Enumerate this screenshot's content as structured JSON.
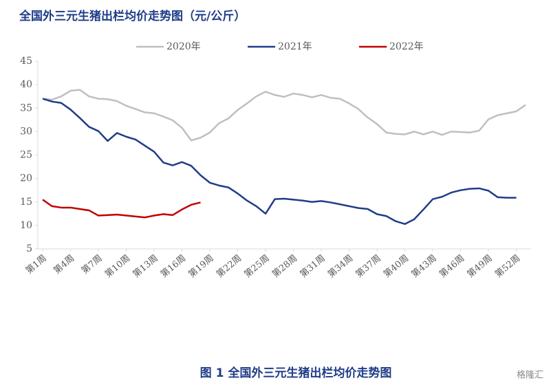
{
  "chart_data": {
    "type": "line",
    "title": "全国外三元生猪出栏均价走势图（元/公斤）",
    "caption": "图 1 全国外三元生猪出栏均价走势图",
    "brand": "格隆汇",
    "categories": [
      "第1周",
      null,
      null,
      "第4周",
      null,
      null,
      "第7周",
      null,
      null,
      "第10周",
      null,
      null,
      "第13周",
      null,
      null,
      "第16周",
      null,
      null,
      "第19周",
      null,
      null,
      "第22周",
      null,
      null,
      "第25周",
      null,
      null,
      "第28周",
      null,
      null,
      "第31周",
      null,
      null,
      "第34周",
      null,
      null,
      "第37周",
      null,
      null,
      "第40周",
      null,
      null,
      "第43周",
      null,
      null,
      "第46周",
      null,
      null,
      "第49周",
      null,
      null,
      "第52周",
      null
    ],
    "ylim": [
      5,
      45
    ],
    "yticks": [
      5,
      10,
      15,
      20,
      25,
      30,
      35,
      40,
      45
    ],
    "legend": "top",
    "series": [
      {
        "name": "2020年",
        "color": "#bfbfbf",
        "values": [
          37,
          36.8,
          37.5,
          38.7,
          38.9,
          37.5,
          37,
          36.9,
          36.5,
          35.5,
          34.8,
          34.1,
          33.9,
          33.2,
          32.4,
          30.8,
          28.1,
          28.7,
          29.8,
          31.8,
          32.8,
          34.6,
          36,
          37.5,
          38.5,
          37.8,
          37.4,
          38.1,
          37.8,
          37.3,
          37.8,
          37.2,
          37,
          36,
          34.8,
          33,
          31.6,
          29.8,
          29.5,
          29.4,
          30,
          29.4,
          30,
          29.3,
          30,
          29.9,
          29.8,
          30.2,
          32.6,
          33.5,
          33.9,
          34.3,
          35.7
        ]
      },
      {
        "name": "2021年",
        "color": "#1f3c88",
        "values": [
          37,
          36.4,
          36.1,
          34.7,
          32.9,
          31,
          30.1,
          28,
          29.7,
          28.9,
          28.3,
          27,
          25.7,
          23.4,
          22.8,
          23.5,
          22.7,
          20.7,
          19.1,
          18.5,
          18.1,
          16.8,
          15.3,
          14.1,
          12.5,
          15.6,
          15.7,
          15.5,
          15.3,
          15,
          15.2,
          14.9,
          14.5,
          14.1,
          13.7,
          13.5,
          12.4,
          12,
          10.9,
          10.3,
          11.3,
          13.4,
          15.6,
          16.1,
          17,
          17.5,
          17.8,
          17.9,
          17.4,
          16,
          15.9,
          15.9,
          null
        ]
      },
      {
        "name": "2022年",
        "color": "#c00000",
        "values": [
          15.5,
          14.1,
          13.8,
          13.8,
          13.5,
          13.2,
          12.1,
          12.2,
          12.3,
          12.1,
          11.9,
          11.7,
          12.1,
          12.4,
          12.2,
          13.4,
          14.4,
          14.9,
          null,
          null,
          null,
          null,
          null,
          null,
          null,
          null,
          null,
          null,
          null,
          null,
          null,
          null,
          null,
          null,
          null,
          null,
          null,
          null,
          null,
          null,
          null,
          null,
          null,
          null,
          null,
          null,
          null,
          null,
          null,
          null,
          null,
          null,
          null
        ]
      }
    ]
  }
}
